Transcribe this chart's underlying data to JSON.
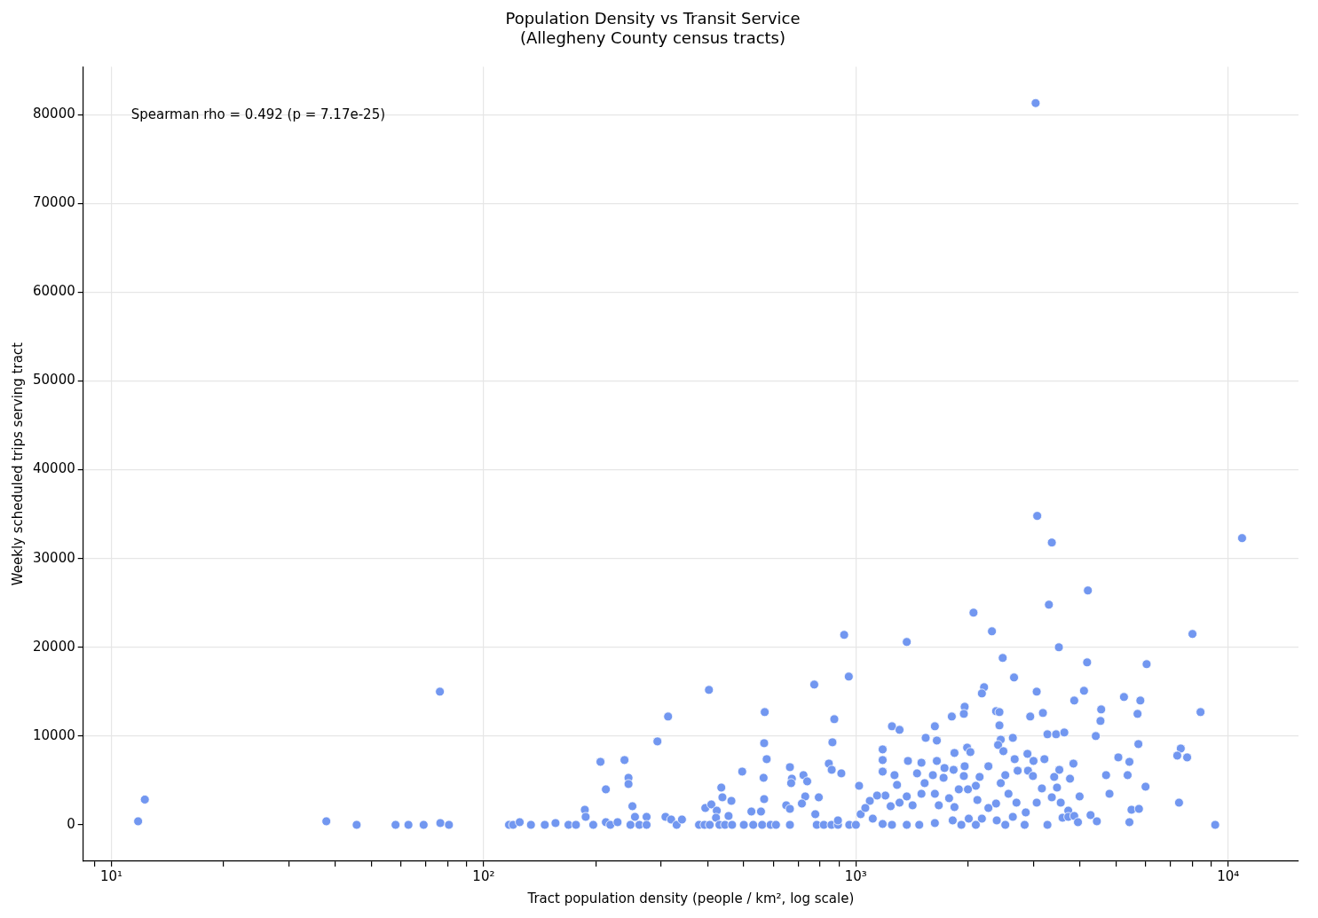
{
  "chart_data": {
    "type": "scatter",
    "title": "Population Density vs Transit Service",
    "subtitle": "(Allegheny County census tracts)",
    "xlabel": "Tract population density (people / km², log scale)",
    "ylabel": "Weekly scheduled trips serving tract",
    "annotations": [
      "Spearman rho = 0.492 (p = 7.17e-25)"
    ],
    "log": "x",
    "grid": true,
    "marker": "circle",
    "legend": false,
    "xlim": [
      8.4,
      15450
    ],
    "ylim": [
      -4100,
      85400
    ],
    "xticks": [
      {
        "value": 9,
        "label": null
      },
      {
        "value": 10,
        "label": "10¹"
      },
      {
        "value": 20,
        "label": null
      },
      {
        "value": 30,
        "label": null
      },
      {
        "value": 40,
        "label": null
      },
      {
        "value": 50,
        "label": null
      },
      {
        "value": 60,
        "label": null
      },
      {
        "value": 70,
        "label": null
      },
      {
        "value": 80,
        "label": null
      },
      {
        "value": 90,
        "label": null
      },
      {
        "value": 100,
        "label": "10²"
      },
      {
        "value": 200,
        "label": null
      },
      {
        "value": 300,
        "label": null
      },
      {
        "value": 400,
        "label": null
      },
      {
        "value": 500,
        "label": null
      },
      {
        "value": 600,
        "label": null
      },
      {
        "value": 700,
        "label": null
      },
      {
        "value": 800,
        "label": null
      },
      {
        "value": 900,
        "label": null
      },
      {
        "value": 1000,
        "label": "10³"
      },
      {
        "value": 2000,
        "label": null
      },
      {
        "value": 3000,
        "label": null
      },
      {
        "value": 4000,
        "label": null
      },
      {
        "value": 5000,
        "label": null
      },
      {
        "value": 6000,
        "label": null
      },
      {
        "value": 7000,
        "label": null
      },
      {
        "value": 8000,
        "label": null
      },
      {
        "value": 9000,
        "label": null
      },
      {
        "value": 10000,
        "label": "10⁴"
      }
    ],
    "yticks": [
      0,
      10000,
      20000,
      30000,
      40000,
      50000,
      60000,
      70000,
      80000
    ],
    "series": [
      {
        "color": "#7297f0",
        "x": [
          11.8,
          12.3,
          37.8,
          45.6,
          58,
          62.8,
          69,
          76.3,
          76.5,
          80.7,
          117,
          120,
          125,
          134,
          146,
          156,
          169,
          177,
          187,
          188,
          197,
          206,
          213,
          213,
          219,
          229,
          239,
          245,
          245,
          248,
          251,
          255,
          262,
          274,
          274,
          293,
          308,
          313,
          319,
          330,
          341,
          379,
          392,
          403,
          394,
          409,
          438,
          435,
          423,
          463,
          455,
          421,
          405,
          430,
          445,
          465,
          495,
          569,
          567,
          576,
          565,
          567,
          556,
          524,
          500,
          530,
          560,
          590,
          610,
          665,
          673,
          670,
          723,
          740,
          773,
          875,
          957,
          930,
          865,
          846,
          861,
          914,
          1020,
          731,
          795,
          778,
          716,
          650,
          665,
          665,
          785,
          820,
          860,
          895,
          960,
          895,
          1030,
          1090,
          1060,
          1110,
          1000,
          1370,
          2070,
          2320,
          3300,
          4200,
          8020,
          2480,
          3510,
          4180,
          6040,
          2660,
          2210,
          2180,
          3060,
          4100,
          3860,
          5250,
          5810,
          8430,
          5710,
          4560,
          4540,
          1960,
          1950,
          1810,
          2380,
          2430,
          2430,
          3180,
          2940,
          1250,
          1310,
          1630,
          3270,
          3450,
          3630,
          4410,
          2640,
          1540,
          1650,
          5740,
          1180,
          1990,
          2030,
          2450,
          2410,
          2490,
          7460,
          7300,
          7760,
          5070,
          5430,
          1840,
          1180,
          1380,
          1500,
          1650,
          2670,
          2890,
          3000,
          3210,
          2270,
          1960,
          3840,
          1180,
          1460,
          1730,
          1830,
          2720,
          2900,
          3410,
          3520,
          3760,
          4700,
          5370,
          1270,
          2150,
          1950,
          1610,
          1720,
          2520,
          2990,
          6000,
          1530,
          1290,
          2100,
          2450,
          3160,
          3470,
          4800,
          3990,
          7380,
          3360,
          3550,
          2700,
          3060,
          2570,
          2380,
          1890,
          2000,
          1630,
          1500,
          1370,
          1200,
          1140,
          1310,
          1670,
          1780,
          1840,
          2120,
          2270,
          1420,
          1240,
          2860,
          2640,
          3720,
          3590,
          3720,
          3860,
          4270,
          4440,
          5500,
          5760,
          5430,
          9230,
          3950,
          3270,
          2840,
          2520,
          2390,
          2180,
          2010,
          1920,
          1820,
          1630,
          1480,
          1370,
          1250,
          1180,
          2100,
          3040,
          3070,
          3360,
          10900
        ],
        "values": [
          400,
          2850,
          400,
          0,
          0,
          0,
          0,
          15000,
          200,
          0,
          0,
          0,
          300,
          0,
          0,
          200,
          0,
          0,
          1700,
          900,
          0,
          7100,
          4000,
          300,
          0,
          300,
          7300,
          5300,
          4600,
          0,
          2100,
          900,
          0,
          900,
          0,
          9400,
          900,
          12200,
          600,
          0,
          600,
          0,
          0,
          15200,
          1900,
          2300,
          3100,
          4200,
          1600,
          2700,
          1000,
          800,
          0,
          0,
          0,
          0,
          6000,
          12700,
          9200,
          7400,
          5300,
          2900,
          1500,
          1500,
          0,
          0,
          0,
          0,
          0,
          6500,
          5200,
          4700,
          5600,
          4900,
          15800,
          11900,
          16700,
          21400,
          9300,
          6900,
          6200,
          5800,
          4400,
          3200,
          3100,
          1200,
          2400,
          2200,
          1800,
          0,
          0,
          0,
          0,
          0,
          0,
          500,
          1200,
          2700,
          1900,
          700,
          0,
          20600,
          23900,
          21800,
          24800,
          26400,
          21500,
          18800,
          20000,
          18300,
          18100,
          16600,
          15500,
          14800,
          15000,
          15100,
          14000,
          14400,
          14000,
          12700,
          12500,
          13000,
          11700,
          13300,
          12500,
          12200,
          12800,
          12700,
          11200,
          12600,
          12200,
          11100,
          10700,
          11100,
          10200,
          10200,
          10400,
          10000,
          9800,
          9800,
          9500,
          9100,
          8500,
          8700,
          8200,
          9600,
          9000,
          8300,
          8600,
          7800,
          7600,
          7600,
          7100,
          8100,
          7300,
          7200,
          7000,
          7200,
          7400,
          8000,
          7200,
          7400,
          6600,
          6600,
          6900,
          6000,
          5800,
          6400,
          6200,
          6100,
          6100,
          5400,
          6200,
          5200,
          5600,
          5600,
          5600,
          5400,
          5500,
          5600,
          5300,
          5600,
          5500,
          4300,
          4700,
          4500,
          4400,
          4700,
          4100,
          4200,
          3500,
          3200,
          2500,
          3100,
          2500,
          2500,
          2500,
          3500,
          2400,
          4000,
          4000,
          3500,
          3500,
          3200,
          3300,
          3300,
          2500,
          2200,
          3000,
          2000,
          2800,
          1900,
          2200,
          2100,
          1400,
          900,
          1600,
          800,
          900,
          1000,
          1100,
          400,
          1700,
          1800,
          300,
          0,
          300,
          0,
          0,
          0,
          500,
          700,
          700,
          0,
          500,
          200,
          0,
          0,
          0,
          100,
          0,
          81300,
          34800,
          31800,
          32300
        ]
      }
    ]
  }
}
